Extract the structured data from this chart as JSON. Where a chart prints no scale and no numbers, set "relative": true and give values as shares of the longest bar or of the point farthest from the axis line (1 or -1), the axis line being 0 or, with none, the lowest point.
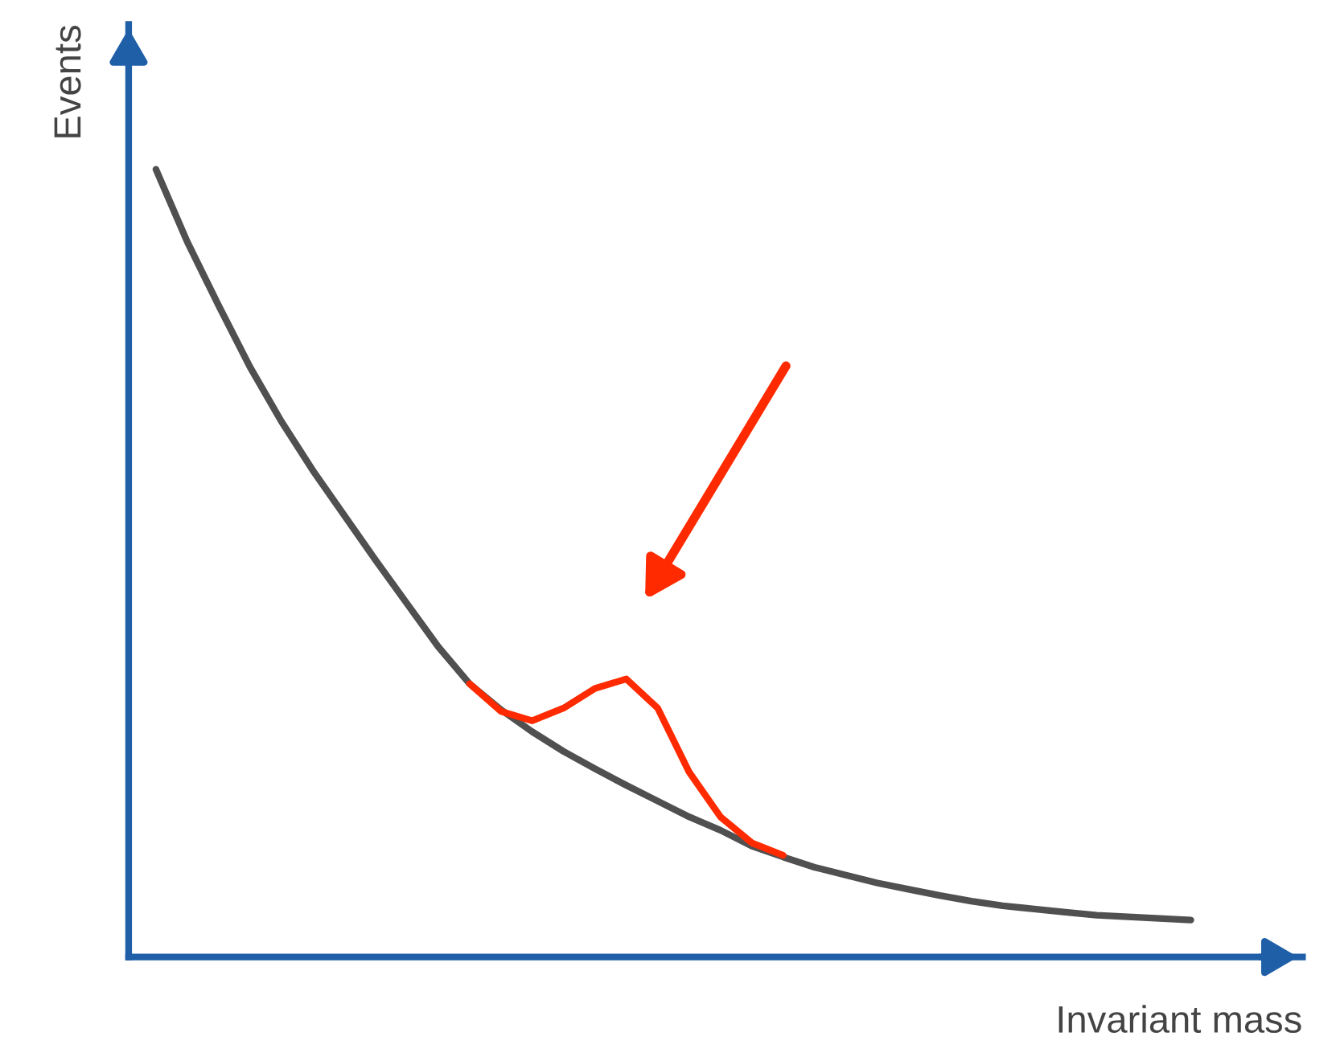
{
  "chart_data": {
    "type": "line",
    "xlabel": "Invariant mass",
    "ylabel": "Events",
    "relative": true,
    "categories": [
      null,
      null,
      null,
      null,
      null,
      null,
      null,
      null,
      null,
      null,
      null,
      null,
      null,
      null,
      null,
      null,
      null,
      null,
      null,
      null,
      null,
      null,
      null,
      null,
      null,
      null,
      null,
      null,
      null,
      null,
      null,
      null,
      null,
      null
    ],
    "series": [
      {
        "color": "#505050",
        "values": [
          1.0,
          0.908,
          0.827,
          0.749,
          0.68,
          0.618,
          0.561,
          0.504,
          0.449,
          0.394,
          0.347,
          0.314,
          0.286,
          0.261,
          0.239,
          0.218,
          0.198,
          0.178,
          0.161,
          0.141,
          0.127,
          0.114,
          0.104,
          0.094,
          0.086,
          0.078,
          0.071,
          0.065,
          0.061,
          0.057,
          0.053,
          0.051,
          0.049,
          0.047
        ]
      },
      {
        "color": "#ff2a00",
        "values": [
          null,
          null,
          null,
          null,
          null,
          null,
          null,
          null,
          null,
          null,
          0.347,
          0.312,
          0.3,
          0.316,
          0.341,
          0.353,
          0.316,
          0.235,
          0.178,
          0.145,
          0.129,
          null,
          null,
          null,
          null,
          null,
          null,
          null,
          null,
          null,
          null,
          null,
          null,
          null
        ]
      }
    ]
  }
}
